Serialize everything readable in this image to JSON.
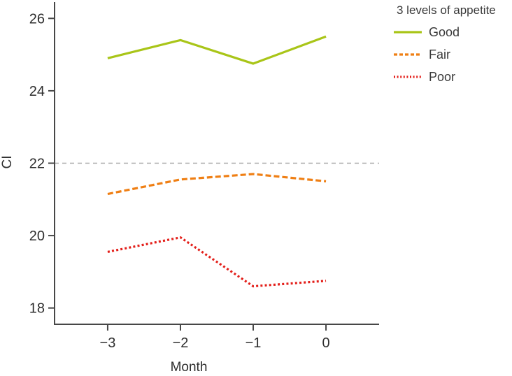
{
  "axis": {
    "y_label": "CI",
    "x_label": "Month",
    "line_color": "#474747",
    "text_color": "#2e2e2e"
  },
  "legend": {
    "title": "3 levels of appetite",
    "items": [
      {
        "label": "Good",
        "color": "#a9c518",
        "style": "solid"
      },
      {
        "label": "Fair",
        "color": "#ef7f14",
        "style": "dashed"
      },
      {
        "label": "Poor",
        "color": "#e31f1a",
        "style": "dotted"
      }
    ]
  },
  "chart_data": {
    "type": "line",
    "title": "",
    "xlabel": "Month",
    "ylabel": "CI",
    "x": [
      -3,
      -2,
      -1,
      0
    ],
    "x_tick_labels": [
      "−3",
      "−2",
      "−1",
      "0"
    ],
    "yticks": [
      18,
      20,
      22,
      24,
      26
    ],
    "ylim": [
      17.55,
      26.45
    ],
    "xlim": [
      -3.73,
      0.73
    ],
    "grid": false,
    "legend_title": "3 levels of appetite",
    "legend_position": "top-right",
    "series": [
      {
        "name": "Good",
        "color": "#a9c518",
        "style": "solid",
        "values": [
          24.9,
          25.4,
          24.75,
          25.5
        ]
      },
      {
        "name": "Fair",
        "color": "#ef7f14",
        "style": "dashed",
        "values": [
          21.15,
          21.55,
          21.7,
          21.5
        ]
      },
      {
        "name": "Poor",
        "color": "#e31f1a",
        "style": "dotted",
        "values": [
          19.55,
          19.95,
          18.6,
          18.75
        ]
      }
    ],
    "reference_line": {
      "y": 22,
      "color": "#a8a8a8",
      "style": "dashed"
    }
  }
}
